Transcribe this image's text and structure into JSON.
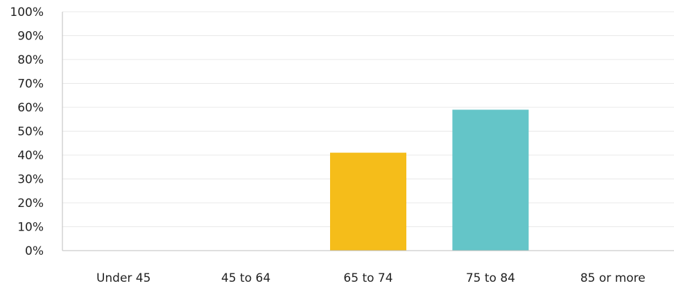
{
  "chart_data": {
    "type": "bar",
    "categories": [
      "Under 45",
      "45 to 64",
      "65 to 74",
      "75 to 84",
      "85 or more"
    ],
    "values": [
      0,
      0,
      41,
      59,
      0
    ],
    "colors": [
      "#f5bd1a",
      "#f5bd1a",
      "#f5bd1a",
      "#64c5c8",
      "#f5bd1a"
    ],
    "yticks": [
      "0%",
      "10%",
      "20%",
      "30%",
      "40%",
      "50%",
      "60%",
      "70%",
      "80%",
      "90%",
      "100%"
    ],
    "ylim": [
      0,
      100
    ],
    "grid": true,
    "title": "",
    "xlabel": "",
    "ylabel": ""
  }
}
